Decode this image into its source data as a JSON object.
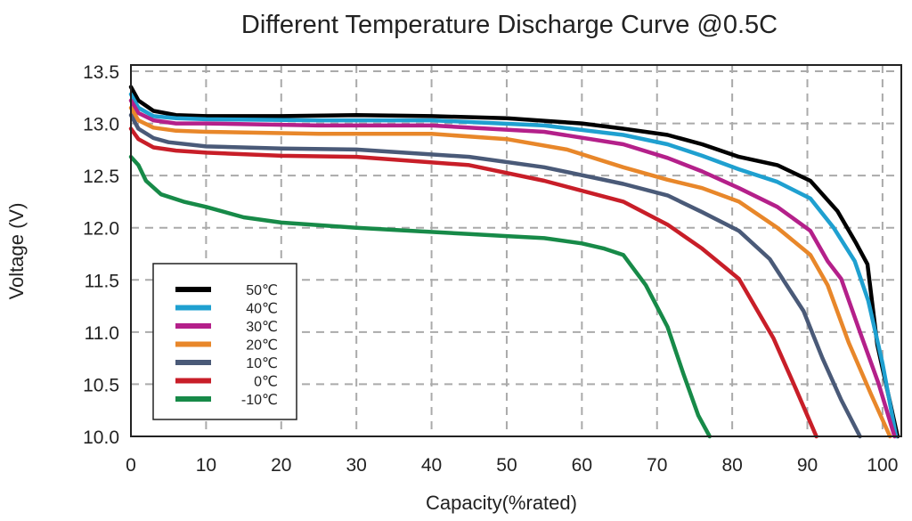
{
  "chart_data": {
    "type": "line",
    "title": "Different Temperature Discharge Curve @0.5C",
    "xlabel": "Capacity(%rated)",
    "ylabel": "Voltage (V)",
    "xlim": [
      0,
      102.5
    ],
    "ylim": [
      10.0,
      13.56
    ],
    "xticks": [
      0,
      10,
      20,
      30,
      40,
      50,
      60,
      70,
      80,
      90,
      100
    ],
    "yticks": [
      "10.0",
      "10.5",
      "11.0",
      "11.5",
      "12.0",
      "12.5",
      "13.0",
      "13.5"
    ],
    "grid": true,
    "legend_position": "bottom-left",
    "series": [
      {
        "name": "50℃",
        "color": "#000000",
        "points": [
          [
            0,
            13.35
          ],
          [
            1,
            13.22
          ],
          [
            3,
            13.12
          ],
          [
            6,
            13.08
          ],
          [
            10,
            13.07
          ],
          [
            20,
            13.07
          ],
          [
            30,
            13.08
          ],
          [
            40,
            13.07
          ],
          [
            50,
            13.05
          ],
          [
            60,
            13.0
          ],
          [
            65.5,
            12.95
          ],
          [
            71.4,
            12.89
          ],
          [
            76,
            12.8
          ],
          [
            80.9,
            12.68
          ],
          [
            86,
            12.6
          ],
          [
            90.4,
            12.45
          ],
          [
            94,
            12.16
          ],
          [
            96.5,
            11.85
          ],
          [
            98,
            11.65
          ],
          [
            99.3,
            10.88
          ],
          [
            102,
            10.0
          ]
        ]
      },
      {
        "name": "40℃",
        "color": "#1fa0d0",
        "points": [
          [
            0,
            13.28
          ],
          [
            1,
            13.15
          ],
          [
            3,
            13.07
          ],
          [
            6,
            13.05
          ],
          [
            10,
            13.04
          ],
          [
            25,
            13.03
          ],
          [
            40,
            13.03
          ],
          [
            55,
            12.98
          ],
          [
            65.5,
            12.89
          ],
          [
            71.4,
            12.8
          ],
          [
            76,
            12.69
          ],
          [
            80.9,
            12.56
          ],
          [
            86,
            12.44
          ],
          [
            90.4,
            12.28
          ],
          [
            93.5,
            12.0
          ],
          [
            96.3,
            11.68
          ],
          [
            98.1,
            11.3
          ],
          [
            100,
            10.7
          ],
          [
            101.8,
            10.0
          ]
        ]
      },
      {
        "name": "30℃",
        "color": "#b4208a",
        "points": [
          [
            0,
            13.22
          ],
          [
            1,
            13.1
          ],
          [
            3,
            13.03
          ],
          [
            6,
            13.0
          ],
          [
            10,
            13.0
          ],
          [
            25,
            12.98
          ],
          [
            40,
            12.98
          ],
          [
            55,
            12.92
          ],
          [
            65.5,
            12.8
          ],
          [
            71.4,
            12.67
          ],
          [
            76,
            12.54
          ],
          [
            80.9,
            12.38
          ],
          [
            86,
            12.2
          ],
          [
            90.4,
            11.97
          ],
          [
            92.7,
            11.68
          ],
          [
            94.5,
            11.51
          ],
          [
            97,
            11.0
          ],
          [
            99.5,
            10.5
          ],
          [
            101.6,
            10.0
          ]
        ]
      },
      {
        "name": "20℃",
        "color": "#e8872a",
        "points": [
          [
            0,
            13.15
          ],
          [
            1,
            13.03
          ],
          [
            3,
            12.96
          ],
          [
            6,
            12.93
          ],
          [
            10,
            12.92
          ],
          [
            25,
            12.9
          ],
          [
            40,
            12.9
          ],
          [
            50,
            12.85
          ],
          [
            58,
            12.75
          ],
          [
            65.5,
            12.58
          ],
          [
            71.4,
            12.46
          ],
          [
            76,
            12.38
          ],
          [
            80.9,
            12.25
          ],
          [
            86,
            12.0
          ],
          [
            90.4,
            11.74
          ],
          [
            92.7,
            11.45
          ],
          [
            95.5,
            10.9
          ],
          [
            98.5,
            10.4
          ],
          [
            101,
            10.0
          ]
        ]
      },
      {
        "name": "10℃",
        "color": "#4a5a78",
        "points": [
          [
            0,
            13.08
          ],
          [
            1,
            12.95
          ],
          [
            3,
            12.86
          ],
          [
            5,
            12.82
          ],
          [
            10,
            12.78
          ],
          [
            20,
            12.76
          ],
          [
            30,
            12.75
          ],
          [
            45,
            12.68
          ],
          [
            55,
            12.58
          ],
          [
            65.5,
            12.42
          ],
          [
            71.4,
            12.31
          ],
          [
            76,
            12.15
          ],
          [
            80.9,
            11.97
          ],
          [
            85,
            11.7
          ],
          [
            89.5,
            11.2
          ],
          [
            92,
            10.75
          ],
          [
            94.5,
            10.35
          ],
          [
            97,
            10.0
          ]
        ]
      },
      {
        "name": "0℃",
        "color": "#c81e28",
        "points": [
          [
            0,
            12.95
          ],
          [
            1,
            12.85
          ],
          [
            3,
            12.77
          ],
          [
            6,
            12.74
          ],
          [
            10,
            12.72
          ],
          [
            20,
            12.69
          ],
          [
            30,
            12.68
          ],
          [
            45,
            12.6
          ],
          [
            55,
            12.45
          ],
          [
            65.5,
            12.25
          ],
          [
            71.4,
            12.03
          ],
          [
            76,
            11.8
          ],
          [
            80.9,
            11.51
          ],
          [
            85.5,
            10.94
          ],
          [
            88.5,
            10.45
          ],
          [
            91.2,
            10.0
          ]
        ]
      },
      {
        "name": "-10℃",
        "color": "#178a48",
        "points": [
          [
            0,
            12.68
          ],
          [
            1,
            12.6
          ],
          [
            2,
            12.45
          ],
          [
            4,
            12.32
          ],
          [
            7,
            12.25
          ],
          [
            10,
            12.2
          ],
          [
            15,
            12.1
          ],
          [
            20,
            12.05
          ],
          [
            30,
            12.0
          ],
          [
            35,
            11.98
          ],
          [
            45,
            11.94
          ],
          [
            50,
            11.92
          ],
          [
            55,
            11.9
          ],
          [
            60,
            11.85
          ],
          [
            63,
            11.8
          ],
          [
            65.5,
            11.74
          ],
          [
            68.5,
            11.45
          ],
          [
            71.4,
            11.05
          ],
          [
            73.5,
            10.6
          ],
          [
            75.5,
            10.2
          ],
          [
            77,
            10.0
          ]
        ]
      }
    ]
  }
}
